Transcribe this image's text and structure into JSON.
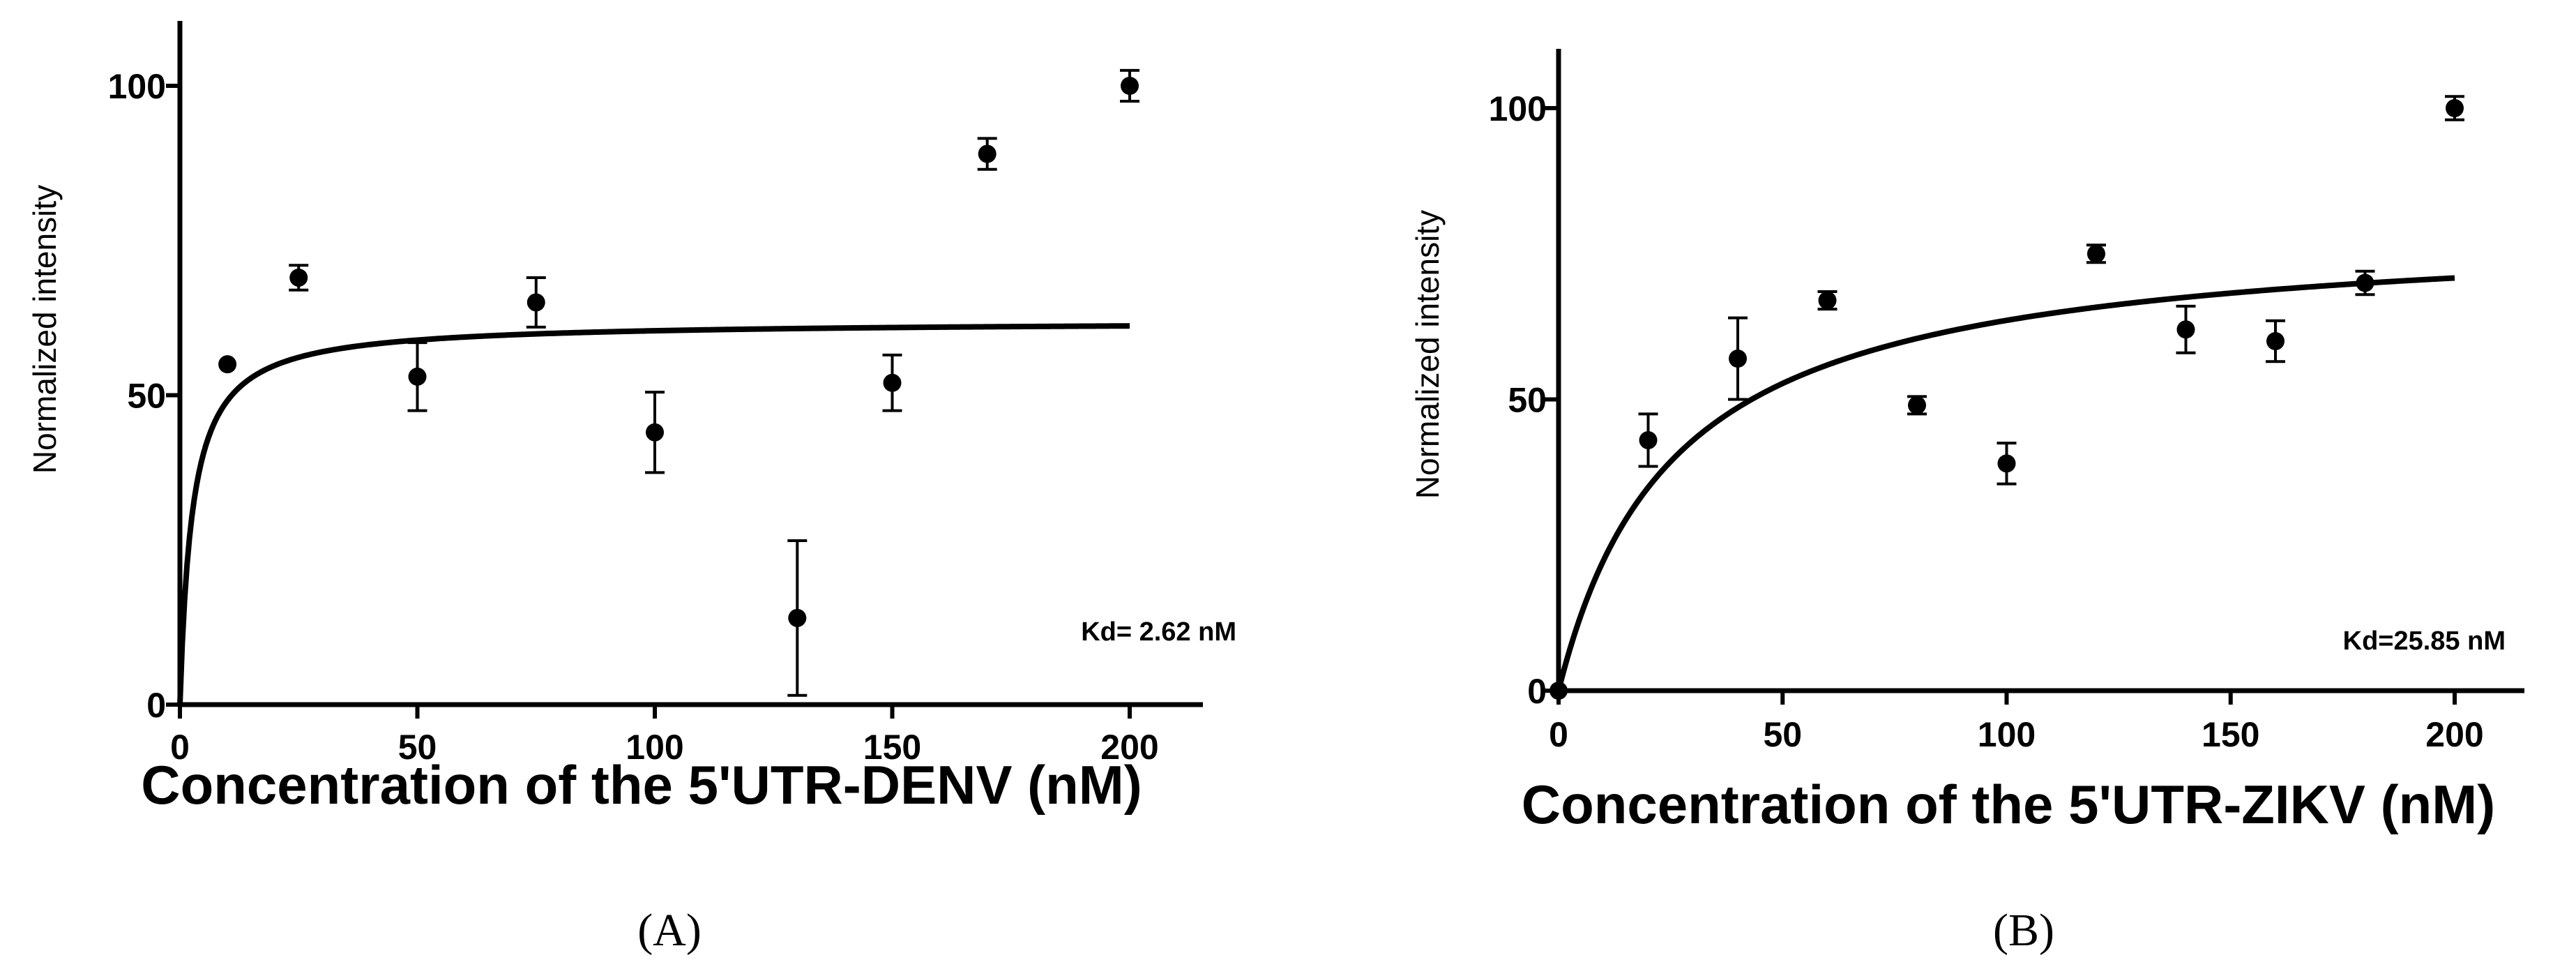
{
  "chart_data": [
    {
      "type": "scatter",
      "panel_label": "(A)",
      "xlabel": "Concentration of the 5'UTR-DENV (nM)",
      "ylabel": "Normalized intensity",
      "annotation": "Kd= 2.62 nM",
      "xlim": [
        0,
        215
      ],
      "ylim": [
        0,
        110
      ],
      "xticks": [
        0,
        50,
        100,
        150,
        200
      ],
      "yticks": [
        0,
        50,
        100
      ],
      "grid": false,
      "series": [
        {
          "type": "scatter",
          "x": [
            10,
            25,
            50,
            75,
            100,
            130,
            150,
            170,
            200
          ],
          "y": [
            55,
            69,
            53,
            65,
            44,
            14,
            52,
            89,
            100
          ],
          "error": [
            0,
            2,
            5.5,
            4,
            6.5,
            12.5,
            4.5,
            2.5,
            2.5
          ]
        },
        {
          "type": "fit",
          "model": "one-site binding",
          "bmax": 62,
          "kd": 2.62,
          "x_range": [
            0,
            200
          ]
        }
      ]
    },
    {
      "type": "scatter",
      "panel_label": "(B)",
      "xlabel": "Concentration of the 5'UTR-ZIKV (nM)",
      "ylabel": "Normalized intensity",
      "annotation": "Kd=25.85 nM",
      "xlim": [
        0,
        215
      ],
      "ylim": [
        0,
        110
      ],
      "xticks": [
        0,
        50,
        100,
        150,
        200
      ],
      "yticks": [
        0,
        50,
        100
      ],
      "grid": false,
      "series": [
        {
          "type": "scatter",
          "x": [
            0,
            20,
            40,
            60,
            80,
            100,
            120,
            140,
            160,
            180,
            200
          ],
          "y": [
            0,
            43,
            57,
            67,
            49,
            39,
            75,
            62,
            60,
            70,
            100
          ],
          "error": [
            0,
            4.5,
            7,
            1.5,
            1.5,
            3.5,
            1.5,
            4,
            3.5,
            2,
            2
          ]
        },
        {
          "type": "fit",
          "model": "one-site binding",
          "bmax": 80,
          "kd": 25.85,
          "x_range": [
            0,
            200
          ]
        }
      ]
    }
  ]
}
